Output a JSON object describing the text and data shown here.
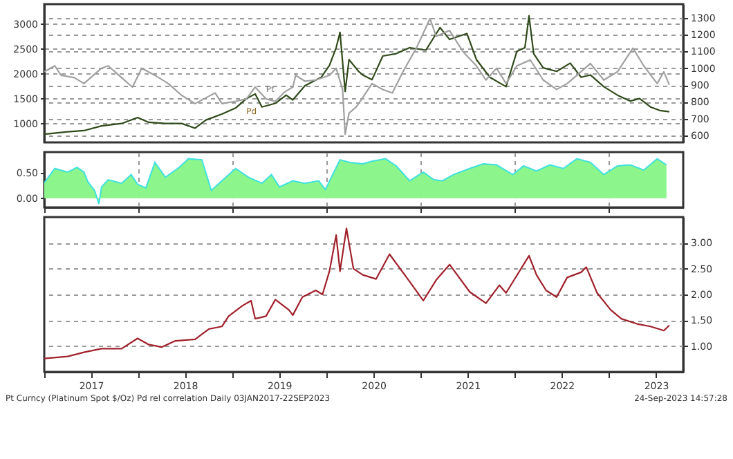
{
  "chart_data": [
    {
      "type": "line",
      "xlim": [
        "2017-01-01",
        "2023-10-15"
      ],
      "ylim": [
        620,
        3400
      ],
      "yticks": [
        1000,
        1500,
        2000,
        2500,
        3000
      ],
      "y2lim": [
        560,
        1380
      ],
      "y2ticks": [
        600,
        700,
        800,
        900,
        1000,
        1100,
        1200,
        1300
      ],
      "grid": "y",
      "tick_labels": "y",
      "series": [
        {
          "name": "Pd",
          "color": "#2f4a1a",
          "x": [
            "2017-01-01",
            "2017-04-02",
            "2017-06-04",
            "2017-08-11",
            "2017-10-28",
            "2017-12-29",
            "2018-02-10",
            "2018-04-16",
            "2018-06-18",
            "2018-08-09",
            "2018-09-20",
            "2018-11-21",
            "2019-01-13",
            "2019-02-24",
            "2019-03-30",
            "2019-04-25",
            "2019-06-16",
            "2019-07-28",
            "2019-08-23",
            "2019-10-09",
            "2019-12-11",
            "2020-01-12",
            "2020-02-07",
            "2020-02-22",
            "2020-03-13",
            "2020-03-28",
            "2020-05-04",
            "2020-05-20",
            "2020-06-25",
            "2020-08-06",
            "2020-09-27",
            "2020-11-18",
            "2021-01-20",
            "2021-03-16",
            "2021-04-22",
            "2021-06-28",
            "2021-08-04",
            "2021-09-25",
            "2021-11-27",
            "2022-01-08",
            "2022-02-08",
            "2022-02-24",
            "2022-03-14",
            "2022-04-20",
            "2022-06-11",
            "2022-08-03",
            "2022-09-14",
            "2022-10-20",
            "2022-12-11",
            "2023-02-02",
            "2023-03-24",
            "2023-04-29",
            "2023-06-10",
            "2023-07-16",
            "2023-08-22"
          ],
          "values": [
            785,
            833,
            857,
            952,
            1000,
            1120,
            1024,
            1000,
            1000,
            905,
            1070,
            1190,
            1310,
            1500,
            1595,
            1333,
            1405,
            1570,
            1475,
            1760,
            1930,
            2167,
            2524,
            2833,
            1643,
            2285,
            2048,
            1976,
            1880,
            2357,
            2405,
            2524,
            2476,
            2928,
            2690,
            2810,
            2285,
            1930,
            1740,
            2452,
            2524,
            3167,
            2405,
            2119,
            2048,
            2214,
            1930,
            1976,
            1740,
            1570,
            1452,
            1500,
            1333,
            1262,
            1238
          ]
        },
        {
          "name": "Pt",
          "color": "#a0a0a0",
          "axis": "y2",
          "x": [
            "2017-01-01",
            "2017-02-11",
            "2017-03-07",
            "2017-04-28",
            "2017-06-04",
            "2017-08-11",
            "2017-09-06",
            "2017-10-28",
            "2017-12-09",
            "2018-01-14",
            "2018-03-06",
            "2018-04-27",
            "2018-06-18",
            "2018-08-09",
            "2018-09-20",
            "2018-10-26",
            "2018-11-21",
            "2019-01-13",
            "2019-02-24",
            "2019-03-30",
            "2019-05-11",
            "2019-06-16",
            "2019-07-23",
            "2019-08-23",
            "2019-09-03",
            "2019-10-09",
            "2019-11-20",
            "2020-01-12",
            "2020-02-07",
            "2020-03-03",
            "2020-03-13",
            "2020-03-28",
            "2020-04-24",
            "2020-05-20",
            "2020-06-25",
            "2020-08-06",
            "2020-09-12",
            "2020-10-23",
            "2020-12-14",
            "2021-02-05",
            "2021-03-01",
            "2021-04-22",
            "2021-06-13",
            "2021-08-04",
            "2021-09-10",
            "2021-10-21",
            "2021-11-27",
            "2022-01-08",
            "2022-03-01",
            "2022-04-20",
            "2022-06-11",
            "2022-07-22",
            "2022-08-29",
            "2022-10-20",
            "2022-12-11",
            "2023-02-02",
            "2023-04-03",
            "2023-05-15",
            "2023-07-06",
            "2023-08-01",
            "2023-08-22"
          ],
          "values": [
            979,
            1014,
            958,
            944,
            909,
            1000,
            1014,
            944,
            888,
            1000,
            958,
            909,
            839,
            790,
            825,
            853,
            790,
            804,
            818,
            888,
            818,
            804,
            860,
            888,
            958,
            923,
            930,
            958,
            1000,
            874,
            608,
            734,
            769,
            825,
            909,
            874,
            853,
            979,
            1119,
            1294,
            1189,
            1224,
            1098,
            1014,
            930,
            1000,
            909,
            1014,
            1049,
            930,
            874,
            909,
            958,
            1028,
            930,
            979,
            1119,
            1014,
            909,
            979,
            902
          ]
        }
      ]
    },
    {
      "type": "area",
      "xlim": [
        "2017-01-01",
        "2023-10-15"
      ],
      "xticks": [
        {
          "value": "2017-01-01",
          "label": null
        },
        {
          "value": "2018-01-01",
          "label": null
        },
        {
          "value": "2019-01-01",
          "label": null
        },
        {
          "value": "2020-01-01",
          "label": null
        },
        {
          "value": "2021-01-01",
          "label": null
        },
        {
          "value": "2022-01-01",
          "label": null
        },
        {
          "value": "2023-01-01",
          "label": null
        }
      ],
      "ylim": [
        -0.18,
        0.9
      ],
      "yticks": [
        {
          "value": 0,
          "label": "0.00"
        },
        {
          "value": 0.5,
          "label": "0.50"
        }
      ],
      "grid": "x",
      "tick_labels": "y",
      "series": [
        {
          "color": "#8cf58c",
          "x": [
            "2017-01-01",
            "2017-02-11",
            "2017-04-02",
            "2017-05-08",
            "2017-06-04",
            "2017-06-19",
            "2017-07-15",
            "2017-08-01",
            "2017-08-11",
            "2017-09-06",
            "2017-10-28",
            "2017-12-04",
            "2017-12-29",
            "2018-01-30",
            "2018-03-06",
            "2018-04-16",
            "2018-06-08",
            "2018-07-14",
            "2018-09-04",
            "2018-10-11",
            "2018-11-21",
            "2019-01-13",
            "2019-03-04",
            "2019-04-25",
            "2019-06-01",
            "2019-07-02",
            "2019-08-23",
            "2019-10-09",
            "2019-12-01",
            "2019-12-27",
            "2020-02-22",
            "2020-03-28",
            "2020-05-20",
            "2020-06-25",
            "2020-08-16",
            "2020-09-27",
            "2020-11-18",
            "2021-01-10",
            "2021-02-20",
            "2021-03-26",
            "2021-05-07",
            "2021-07-09",
            "2021-08-30",
            "2021-10-21",
            "2021-12-23",
            "2022-02-03",
            "2022-03-25",
            "2022-05-16",
            "2022-07-07",
            "2022-08-29",
            "2022-10-20",
            "2022-12-11",
            "2023-02-02",
            "2023-03-24",
            "2023-05-15",
            "2023-07-06",
            "2023-08-11"
          ],
          "values": [
            0.3,
            0.58,
            0.51,
            0.6,
            0.51,
            0.32,
            0.15,
            -0.11,
            0.22,
            0.36,
            0.29,
            0.46,
            0.27,
            0.2,
            0.7,
            0.41,
            0.6,
            0.77,
            0.75,
            0.15,
            0.34,
            0.58,
            0.41,
            0.29,
            0.46,
            0.22,
            0.34,
            0.29,
            0.34,
            0.17,
            0.75,
            0.7,
            0.67,
            0.72,
            0.77,
            0.63,
            0.34,
            0.51,
            0.36,
            0.34,
            0.46,
            0.58,
            0.67,
            0.65,
            0.46,
            0.63,
            0.53,
            0.65,
            0.58,
            0.77,
            0.7,
            0.46,
            0.63,
            0.65,
            0.55,
            0.77,
            0.65
          ]
        }
      ]
    },
    {
      "type": "line",
      "xlim": [
        "2017-01-01",
        "2023-10-15"
      ],
      "xticks": [
        {
          "value": "2017-01-01",
          "label": null
        },
        {
          "value": "2017-07-01",
          "label": "2017"
        },
        {
          "value": "2018-01-01",
          "label": null
        },
        {
          "value": "2018-07-01",
          "label": "2018"
        },
        {
          "value": "2019-01-01",
          "label": null
        },
        {
          "value": "2019-07-01",
          "label": "2019"
        },
        {
          "value": "2020-01-01",
          "label": null
        },
        {
          "value": "2020-07-01",
          "label": "2020"
        },
        {
          "value": "2021-01-01",
          "label": null
        },
        {
          "value": "2021-07-01",
          "label": "2021"
        },
        {
          "value": "2022-01-01",
          "label": null
        },
        {
          "value": "2022-07-01",
          "label": "2022"
        },
        {
          "value": "2023-01-01",
          "label": null
        },
        {
          "value": "2023-07-01",
          "label": "2023"
        }
      ],
      "y2lim": [
        0.5,
        3.5
      ],
      "y2ticks": [
        {
          "value": 1,
          "label": "1.00"
        },
        {
          "value": 1.5,
          "label": "1.50"
        },
        {
          "value": 2,
          "label": "2.00"
        },
        {
          "value": 2.5,
          "label": "2.50"
        },
        {
          "value": 3,
          "label": "3.00"
        }
      ],
      "grid": "y",
      "annotations": [
        "Pt Curncy (Platinum Spot $/Oz) Pd rel correlation  Daily 03JAN2017-22SEP2023",
        "24-Sep-2023 14:57:28"
      ],
      "series": [
        {
          "color": "#a0202a",
          "axis": "y2",
          "x": [
            "2017-01-01",
            "2017-04-02",
            "2017-06-04",
            "2017-08-11",
            "2017-10-28",
            "2017-12-29",
            "2018-02-10",
            "2018-04-01",
            "2018-05-23",
            "2018-08-09",
            "2018-10-01",
            "2018-11-21",
            "2018-12-17",
            "2019-02-08",
            "2019-03-14",
            "2019-03-30",
            "2019-05-11",
            "2019-06-16",
            "2019-08-08",
            "2019-08-23",
            "2019-09-29",
            "2019-11-20",
            "2019-12-16",
            "2020-01-12",
            "2020-02-07",
            "2020-02-22",
            "2020-03-18",
            "2020-04-14",
            "2020-05-20",
            "2020-07-11",
            "2020-09-01",
            "2020-11-18",
            "2021-01-10",
            "2021-03-01",
            "2021-04-22",
            "2021-07-09",
            "2021-09-10",
            "2021-11-01",
            "2021-11-27",
            "2022-02-24",
            "2022-03-25",
            "2022-05-01",
            "2022-06-11",
            "2022-07-22",
            "2022-09-14",
            "2022-10-04",
            "2022-11-15",
            "2023-01-07",
            "2023-02-17",
            "2023-04-19",
            "2023-06-10",
            "2023-08-01",
            "2023-08-22"
          ],
          "values": [
            0.76,
            0.8,
            0.88,
            0.95,
            0.95,
            1.15,
            1.03,
            0.98,
            1.1,
            1.13,
            1.33,
            1.38,
            1.58,
            1.78,
            1.88,
            1.53,
            1.58,
            1.9,
            1.7,
            1.6,
            1.95,
            2.08,
            2.0,
            2.45,
            3.15,
            2.45,
            3.28,
            2.5,
            2.38,
            2.3,
            2.78,
            2.25,
            1.88,
            2.28,
            2.58,
            2.05,
            1.83,
            2.18,
            2.03,
            2.75,
            2.38,
            2.08,
            1.95,
            2.33,
            2.43,
            2.53,
            2.03,
            1.7,
            1.53,
            1.43,
            1.38,
            1.3,
            1.4
          ]
        }
      ]
    }
  ]
}
